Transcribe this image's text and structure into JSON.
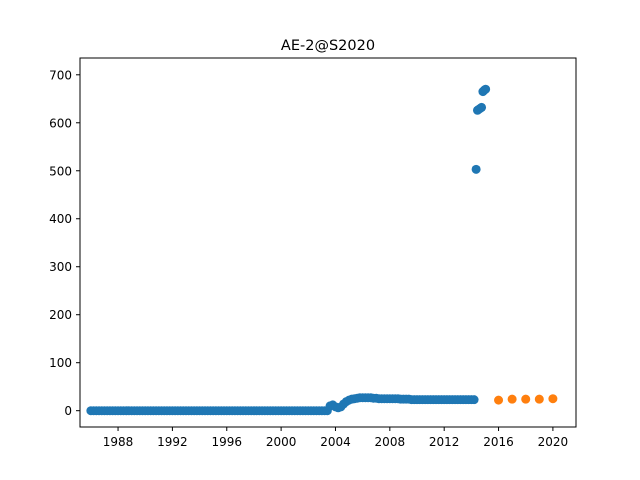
{
  "chart_data": {
    "type": "scatter",
    "title": "AE-2@S2020",
    "xlabel": "",
    "ylabel": "",
    "xlim": [
      1985.2,
      2021.7
    ],
    "ylim": [
      -34,
      735
    ],
    "x_ticks": [
      1988,
      1992,
      1996,
      2000,
      2004,
      2008,
      2012,
      2016,
      2020
    ],
    "y_ticks": [
      0,
      100,
      200,
      300,
      400,
      500,
      600,
      700
    ],
    "grid": false,
    "legend": null,
    "series": [
      {
        "color": "#1f77b4",
        "points": [
          [
            1986.0,
            0
          ],
          [
            1986.2,
            0
          ],
          [
            1986.4,
            0
          ],
          [
            1986.6,
            0
          ],
          [
            1986.8,
            0
          ],
          [
            1987.0,
            0
          ],
          [
            1987.2,
            0
          ],
          [
            1987.4,
            0
          ],
          [
            1987.6,
            0
          ],
          [
            1987.8,
            0
          ],
          [
            1988.0,
            0
          ],
          [
            1988.2,
            0
          ],
          [
            1988.4,
            0
          ],
          [
            1988.6,
            0
          ],
          [
            1988.8,
            0
          ],
          [
            1989.0,
            0
          ],
          [
            1989.2,
            0
          ],
          [
            1989.4,
            0
          ],
          [
            1989.6,
            0
          ],
          [
            1989.8,
            0
          ],
          [
            1990.0,
            0
          ],
          [
            1990.2,
            0
          ],
          [
            1990.4,
            0
          ],
          [
            1990.6,
            0
          ],
          [
            1990.8,
            0
          ],
          [
            1991.0,
            0
          ],
          [
            1991.2,
            0
          ],
          [
            1991.4,
            0
          ],
          [
            1991.6,
            0
          ],
          [
            1991.8,
            0
          ],
          [
            1992.0,
            0
          ],
          [
            1992.2,
            0
          ],
          [
            1992.4,
            0
          ],
          [
            1992.6,
            0
          ],
          [
            1992.8,
            0
          ],
          [
            1993.0,
            0
          ],
          [
            1993.2,
            0
          ],
          [
            1993.4,
            0
          ],
          [
            1993.6,
            0
          ],
          [
            1993.8,
            0
          ],
          [
            1994.0,
            0
          ],
          [
            1994.2,
            0
          ],
          [
            1994.4,
            0
          ],
          [
            1994.6,
            0
          ],
          [
            1994.8,
            0
          ],
          [
            1995.0,
            0
          ],
          [
            1995.2,
            0
          ],
          [
            1995.4,
            0
          ],
          [
            1995.6,
            0
          ],
          [
            1995.8,
            0
          ],
          [
            1996.0,
            0
          ],
          [
            1996.2,
            0
          ],
          [
            1996.4,
            0
          ],
          [
            1996.6,
            0
          ],
          [
            1996.8,
            0
          ],
          [
            1997.0,
            0
          ],
          [
            1997.2,
            0
          ],
          [
            1997.4,
            0
          ],
          [
            1997.6,
            0
          ],
          [
            1997.8,
            0
          ],
          [
            1998.0,
            0
          ],
          [
            1998.2,
            0
          ],
          [
            1998.4,
            0
          ],
          [
            1998.6,
            0
          ],
          [
            1998.8,
            0
          ],
          [
            1999.0,
            0
          ],
          [
            1999.2,
            0
          ],
          [
            1999.4,
            0
          ],
          [
            1999.6,
            0
          ],
          [
            1999.8,
            0
          ],
          [
            2000.0,
            0
          ],
          [
            2000.2,
            0
          ],
          [
            2000.4,
            0
          ],
          [
            2000.6,
            0
          ],
          [
            2000.8,
            0
          ],
          [
            2001.0,
            0
          ],
          [
            2001.2,
            0
          ],
          [
            2001.4,
            0
          ],
          [
            2001.6,
            0
          ],
          [
            2001.8,
            0
          ],
          [
            2002.0,
            0
          ],
          [
            2002.2,
            0
          ],
          [
            2002.4,
            0
          ],
          [
            2002.6,
            0
          ],
          [
            2002.8,
            0
          ],
          [
            2003.0,
            0
          ],
          [
            2003.2,
            0
          ],
          [
            2003.4,
            0
          ],
          [
            2003.6,
            10
          ],
          [
            2003.8,
            12
          ],
          [
            2004.0,
            8
          ],
          [
            2004.2,
            6
          ],
          [
            2004.4,
            8
          ],
          [
            2004.6,
            14
          ],
          [
            2004.8,
            19
          ],
          [
            2005.0,
            22
          ],
          [
            2005.2,
            24
          ],
          [
            2005.4,
            25
          ],
          [
            2005.6,
            26
          ],
          [
            2005.8,
            27
          ],
          [
            2006.0,
            27
          ],
          [
            2006.2,
            27
          ],
          [
            2006.4,
            27
          ],
          [
            2006.6,
            27
          ],
          [
            2006.8,
            26
          ],
          [
            2007.0,
            26
          ],
          [
            2007.2,
            25
          ],
          [
            2007.4,
            25
          ],
          [
            2007.6,
            25
          ],
          [
            2007.8,
            25
          ],
          [
            2008.0,
            25
          ],
          [
            2008.2,
            25
          ],
          [
            2008.4,
            25
          ],
          [
            2008.6,
            25
          ],
          [
            2008.8,
            24
          ],
          [
            2009.0,
            24
          ],
          [
            2009.2,
            24
          ],
          [
            2009.4,
            24
          ],
          [
            2009.6,
            23
          ],
          [
            2009.8,
            23
          ],
          [
            2010.0,
            23
          ],
          [
            2010.2,
            23
          ],
          [
            2010.4,
            23
          ],
          [
            2010.6,
            23
          ],
          [
            2010.8,
            23
          ],
          [
            2011.0,
            23
          ],
          [
            2011.2,
            23
          ],
          [
            2011.4,
            23
          ],
          [
            2011.6,
            23
          ],
          [
            2011.8,
            23
          ],
          [
            2012.0,
            23
          ],
          [
            2012.2,
            23
          ],
          [
            2012.4,
            23
          ],
          [
            2012.6,
            23
          ],
          [
            2012.8,
            23
          ],
          [
            2013.0,
            23
          ],
          [
            2013.2,
            23
          ],
          [
            2013.4,
            23
          ],
          [
            2013.6,
            23
          ],
          [
            2013.8,
            23
          ],
          [
            2014.0,
            23
          ],
          [
            2014.2,
            23
          ],
          [
            2014.35,
            503
          ],
          [
            2014.45,
            626
          ],
          [
            2014.55,
            628
          ],
          [
            2014.65,
            630
          ],
          [
            2014.75,
            632
          ],
          [
            2014.85,
            665
          ],
          [
            2014.95,
            668
          ],
          [
            2015.05,
            670
          ]
        ]
      },
      {
        "color": "#ff7f0e",
        "points": [
          [
            2016,
            22
          ],
          [
            2017,
            24
          ],
          [
            2018,
            24
          ],
          [
            2019,
            24
          ],
          [
            2020,
            25
          ]
        ]
      }
    ]
  }
}
